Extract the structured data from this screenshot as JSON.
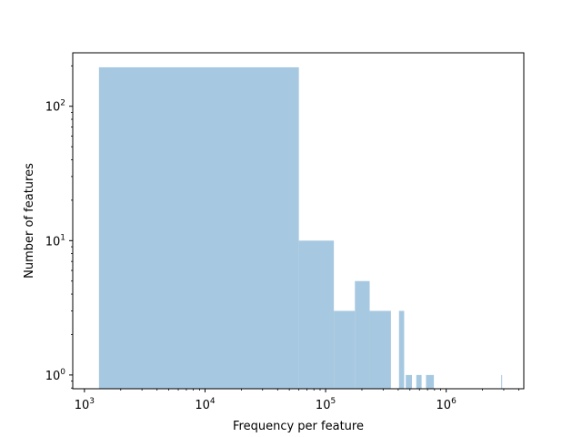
{
  "chart_data": {
    "type": "bar",
    "subtype": "histogram",
    "xscale": "log",
    "yscale": "log",
    "xlabel": "Frequency per feature",
    "ylabel": "Number of features",
    "xlim": [
      800,
      4400000
    ],
    "ylim": [
      0.79,
      250
    ],
    "xticks": [
      {
        "value": 1000,
        "base": "10",
        "exp": "3"
      },
      {
        "value": 10000,
        "base": "10",
        "exp": "4"
      },
      {
        "value": 100000,
        "base": "10",
        "exp": "5"
      },
      {
        "value": 1000000,
        "base": "10",
        "exp": "6"
      }
    ],
    "yticks": [
      {
        "value": 1,
        "base": "10",
        "exp": "0"
      },
      {
        "value": 10,
        "base": "10",
        "exp": "1"
      },
      {
        "value": 100,
        "base": "10",
        "exp": "2"
      }
    ],
    "bar_color": "#a6c8e0",
    "bins": [
      {
        "x0": 1320,
        "x1": 60000,
        "count": 195
      },
      {
        "x0": 60000,
        "x1": 117000,
        "count": 10
      },
      {
        "x0": 117000,
        "x1": 175000,
        "count": 3
      },
      {
        "x0": 175000,
        "x1": 232000,
        "count": 5
      },
      {
        "x0": 232000,
        "x1": 348000,
        "count": 3
      },
      {
        "x0": 406000,
        "x1": 448000,
        "count": 3
      },
      {
        "x0": 462000,
        "x1": 520000,
        "count": 1
      },
      {
        "x0": 565000,
        "x1": 625000,
        "count": 1
      },
      {
        "x0": 680000,
        "x1": 790000,
        "count": 1
      },
      {
        "x0": 2860000,
        "x1": 2880000,
        "count": 1
      }
    ]
  }
}
